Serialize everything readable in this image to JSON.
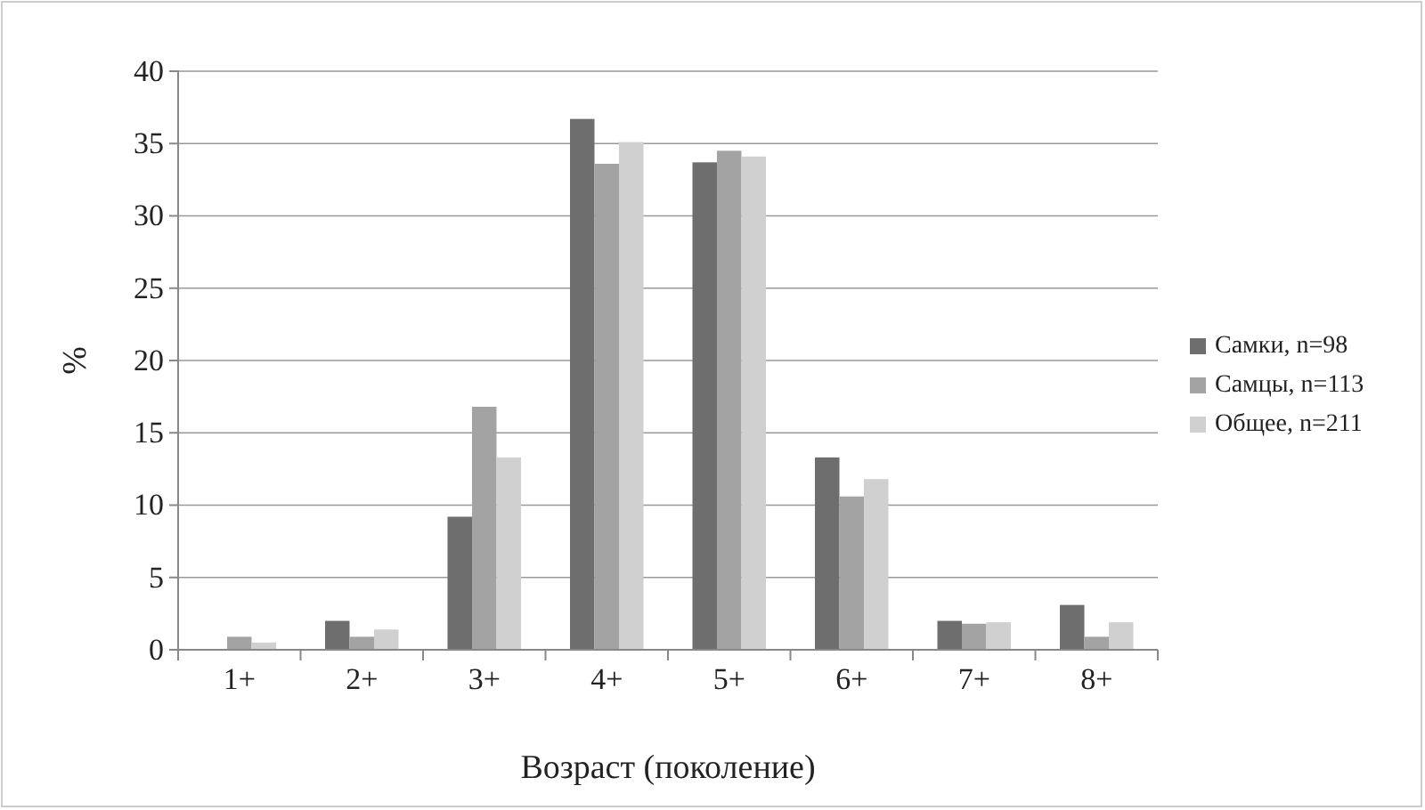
{
  "chart_data": {
    "type": "bar",
    "xlabel": "Возраст (поколение)",
    "ylabel": "%",
    "categories": [
      "1+",
      "2+",
      "3+",
      "4+",
      "5+",
      "6+",
      "7+",
      "8+"
    ],
    "series": [
      {
        "name": "Самки, n=98",
        "color": "#6e6e6e",
        "values": [
          0,
          2.0,
          9.2,
          36.7,
          33.7,
          13.3,
          2.0,
          3.1
        ]
      },
      {
        "name": "Самцы, n=113",
        "color": "#a3a3a3",
        "values": [
          0.9,
          0.9,
          16.8,
          33.6,
          34.5,
          10.6,
          1.8,
          0.9
        ]
      },
      {
        "name": "Общее, n=211",
        "color": "#d0d0d0",
        "values": [
          0.5,
          1.4,
          13.3,
          35.1,
          34.1,
          11.8,
          1.9,
          1.9
        ]
      }
    ],
    "ylim": [
      0,
      40
    ],
    "yticks": [
      0,
      5,
      10,
      15,
      20,
      25,
      30,
      35,
      40
    ],
    "grid": "y",
    "legend": "right"
  }
}
